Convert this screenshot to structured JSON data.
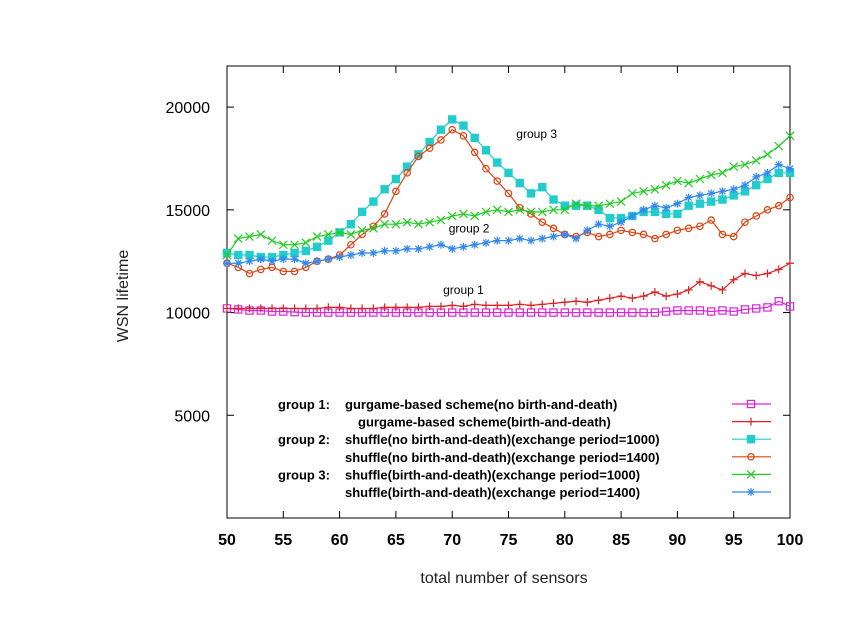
{
  "chart_data": {
    "type": "line",
    "title": "",
    "xlabel": "total number of sensors",
    "ylabel": "WSN lifetime",
    "xlim": [
      50,
      100
    ],
    "ylim": [
      0,
      22000
    ],
    "x_ticks": [
      50,
      55,
      60,
      65,
      70,
      75,
      80,
      85,
      90,
      95,
      100
    ],
    "y_ticks": [
      5000,
      10000,
      15000,
      20000
    ],
    "grid": false,
    "legend_position": "bottom-center",
    "annotations": [
      {
        "text": "group 3",
        "x": 77.5,
        "y": 18500
      },
      {
        "text": "group 2",
        "x": 71.5,
        "y": 13900
      },
      {
        "text": "group 1",
        "x": 71,
        "y": 10900
      }
    ],
    "series": [
      {
        "name": "gurgame-based scheme(no birth-and-death)",
        "group_label": "group 1:",
        "color": "#dd22dd",
        "marker": "square-open",
        "x": [
          50,
          51,
          52,
          53,
          54,
          55,
          56,
          57,
          58,
          59,
          60,
          61,
          62,
          63,
          64,
          65,
          66,
          67,
          68,
          69,
          70,
          71,
          72,
          73,
          74,
          75,
          76,
          77,
          78,
          79,
          80,
          81,
          82,
          83,
          84,
          85,
          86,
          87,
          88,
          89,
          90,
          91,
          92,
          93,
          94,
          95,
          96,
          97,
          98,
          99,
          100
        ],
        "values": [
          10200,
          10150,
          10100,
          10100,
          10050,
          10050,
          10020,
          10000,
          10000,
          10000,
          10000,
          10000,
          10000,
          10000,
          10000,
          10000,
          10000,
          10000,
          10000,
          10000,
          10000,
          10000,
          10000,
          10000,
          10000,
          10000,
          10000,
          10000,
          10000,
          10000,
          10000,
          10000,
          10000,
          10000,
          10000,
          10000,
          10000,
          10000,
          10000,
          10050,
          10100,
          10100,
          10100,
          10050,
          10100,
          10050,
          10150,
          10200,
          10250,
          10550,
          10300
        ]
      },
      {
        "name": "gurgame-based scheme(birth-and-death)",
        "group_label": "",
        "color": "#dd2222",
        "marker": "plus",
        "x": [
          50,
          51,
          52,
          53,
          54,
          55,
          56,
          57,
          58,
          59,
          60,
          61,
          62,
          63,
          64,
          65,
          66,
          67,
          68,
          69,
          70,
          71,
          72,
          73,
          74,
          75,
          76,
          77,
          78,
          79,
          80,
          81,
          82,
          83,
          84,
          85,
          86,
          87,
          88,
          89,
          90,
          91,
          92,
          93,
          94,
          95,
          96,
          97,
          98,
          99,
          100
        ],
        "values": [
          10200,
          10200,
          10200,
          10200,
          10200,
          10200,
          10200,
          10200,
          10200,
          10250,
          10250,
          10200,
          10200,
          10200,
          10250,
          10250,
          10250,
          10250,
          10300,
          10300,
          10350,
          10300,
          10400,
          10350,
          10350,
          10350,
          10400,
          10350,
          10400,
          10450,
          10500,
          10550,
          10500,
          10600,
          10700,
          10800,
          10700,
          10800,
          11000,
          10800,
          10900,
          11100,
          11500,
          11300,
          11100,
          11600,
          11900,
          11800,
          11900,
          12100,
          12400
        ]
      },
      {
        "name": "shuffle(no birth-and-death)(exchange period=1000)",
        "group_label": "group 2:",
        "color": "#22cccc",
        "marker": "square-filled",
        "x": [
          50,
          51,
          52,
          53,
          54,
          55,
          56,
          57,
          58,
          59,
          60,
          61,
          62,
          63,
          64,
          65,
          66,
          67,
          68,
          69,
          70,
          71,
          72,
          73,
          74,
          75,
          76,
          77,
          78,
          79,
          80,
          81,
          82,
          83,
          84,
          85,
          86,
          87,
          88,
          89,
          90,
          91,
          92,
          93,
          94,
          95,
          96,
          97,
          98,
          99,
          100
        ],
        "values": [
          12900,
          12800,
          12800,
          12700,
          12700,
          12800,
          12900,
          13000,
          13200,
          13500,
          13900,
          14300,
          14900,
          15400,
          16000,
          16500,
          17100,
          17700,
          18300,
          18900,
          19400,
          19100,
          18500,
          17900,
          17300,
          16800,
          16300,
          15800,
          16100,
          15500,
          15200,
          15200,
          15200,
          15000,
          14600,
          14600,
          14700,
          14900,
          14900,
          14800,
          14800,
          15200,
          15300,
          15400,
          15500,
          15700,
          15900,
          16200,
          16500,
          16800,
          16800
        ]
      },
      {
        "name": "shuffle(no birth-and-death)(exchange period=1400)",
        "group_label": "",
        "color": "#dd4411",
        "marker": "circle-open",
        "x": [
          50,
          51,
          52,
          53,
          54,
          55,
          56,
          57,
          58,
          59,
          60,
          61,
          62,
          63,
          64,
          65,
          66,
          67,
          68,
          69,
          70,
          71,
          72,
          73,
          74,
          75,
          76,
          77,
          78,
          79,
          80,
          81,
          82,
          83,
          84,
          85,
          86,
          87,
          88,
          89,
          90,
          91,
          92,
          93,
          94,
          95,
          96,
          97,
          98,
          99,
          100
        ],
        "values": [
          12400,
          12200,
          11900,
          12100,
          12200,
          12000,
          12000,
          12200,
          12500,
          12600,
          12800,
          13300,
          13800,
          14200,
          14800,
          15900,
          16800,
          17600,
          18000,
          18400,
          18900,
          18600,
          17800,
          17000,
          16400,
          15800,
          15100,
          14800,
          14400,
          14100,
          13800,
          13700,
          13900,
          13700,
          13800,
          14000,
          13900,
          13800,
          13600,
          13800,
          14000,
          14100,
          14200,
          14500,
          13800,
          13700,
          14400,
          14700,
          15000,
          15200,
          15600
        ]
      },
      {
        "name": "shuffle(birth-and-death)(exchange period=1000)",
        "group_label": "group 3:",
        "color": "#22cc22",
        "marker": "x",
        "x": [
          50,
          51,
          52,
          53,
          54,
          55,
          56,
          57,
          58,
          59,
          60,
          61,
          62,
          63,
          64,
          65,
          66,
          67,
          68,
          69,
          70,
          71,
          72,
          73,
          74,
          75,
          76,
          77,
          78,
          79,
          80,
          81,
          82,
          83,
          84,
          85,
          86,
          87,
          88,
          89,
          90,
          91,
          92,
          93,
          94,
          95,
          96,
          97,
          98,
          99,
          100
        ],
        "values": [
          12800,
          13600,
          13700,
          13800,
          13500,
          13300,
          13300,
          13400,
          13700,
          13800,
          13900,
          13800,
          14000,
          14100,
          14300,
          14300,
          14400,
          14300,
          14400,
          14500,
          14700,
          14800,
          14700,
          14900,
          15000,
          14900,
          15000,
          14900,
          14900,
          15000,
          15000,
          15300,
          15200,
          15200,
          15300,
          15400,
          15800,
          15900,
          16000,
          16200,
          16400,
          16300,
          16500,
          16700,
          16800,
          17100,
          17200,
          17400,
          17700,
          18100,
          18600
        ]
      },
      {
        "name": "shuffle(birth-and-death)(exchange period=1400)",
        "group_label": "",
        "color": "#3388ee",
        "marker": "star",
        "x": [
          50,
          51,
          52,
          53,
          54,
          55,
          56,
          57,
          58,
          59,
          60,
          61,
          62,
          63,
          64,
          65,
          66,
          67,
          68,
          69,
          70,
          71,
          72,
          73,
          74,
          75,
          76,
          77,
          78,
          79,
          80,
          81,
          82,
          83,
          84,
          85,
          86,
          87,
          88,
          89,
          90,
          91,
          92,
          93,
          94,
          95,
          96,
          97,
          98,
          99,
          100
        ],
        "values": [
          12400,
          12400,
          12500,
          12600,
          12500,
          12600,
          12600,
          12400,
          12500,
          12600,
          12700,
          12800,
          12900,
          12900,
          13000,
          13000,
          13100,
          13100,
          13200,
          13300,
          13100,
          13200,
          13300,
          13400,
          13500,
          13500,
          13600,
          13500,
          13600,
          13700,
          13800,
          13600,
          14000,
          14300,
          14200,
          14400,
          14700,
          15000,
          15200,
          15100,
          15300,
          15600,
          15700,
          15800,
          15900,
          16000,
          16200,
          16600,
          16800,
          17200,
          17000
        ]
      }
    ]
  }
}
